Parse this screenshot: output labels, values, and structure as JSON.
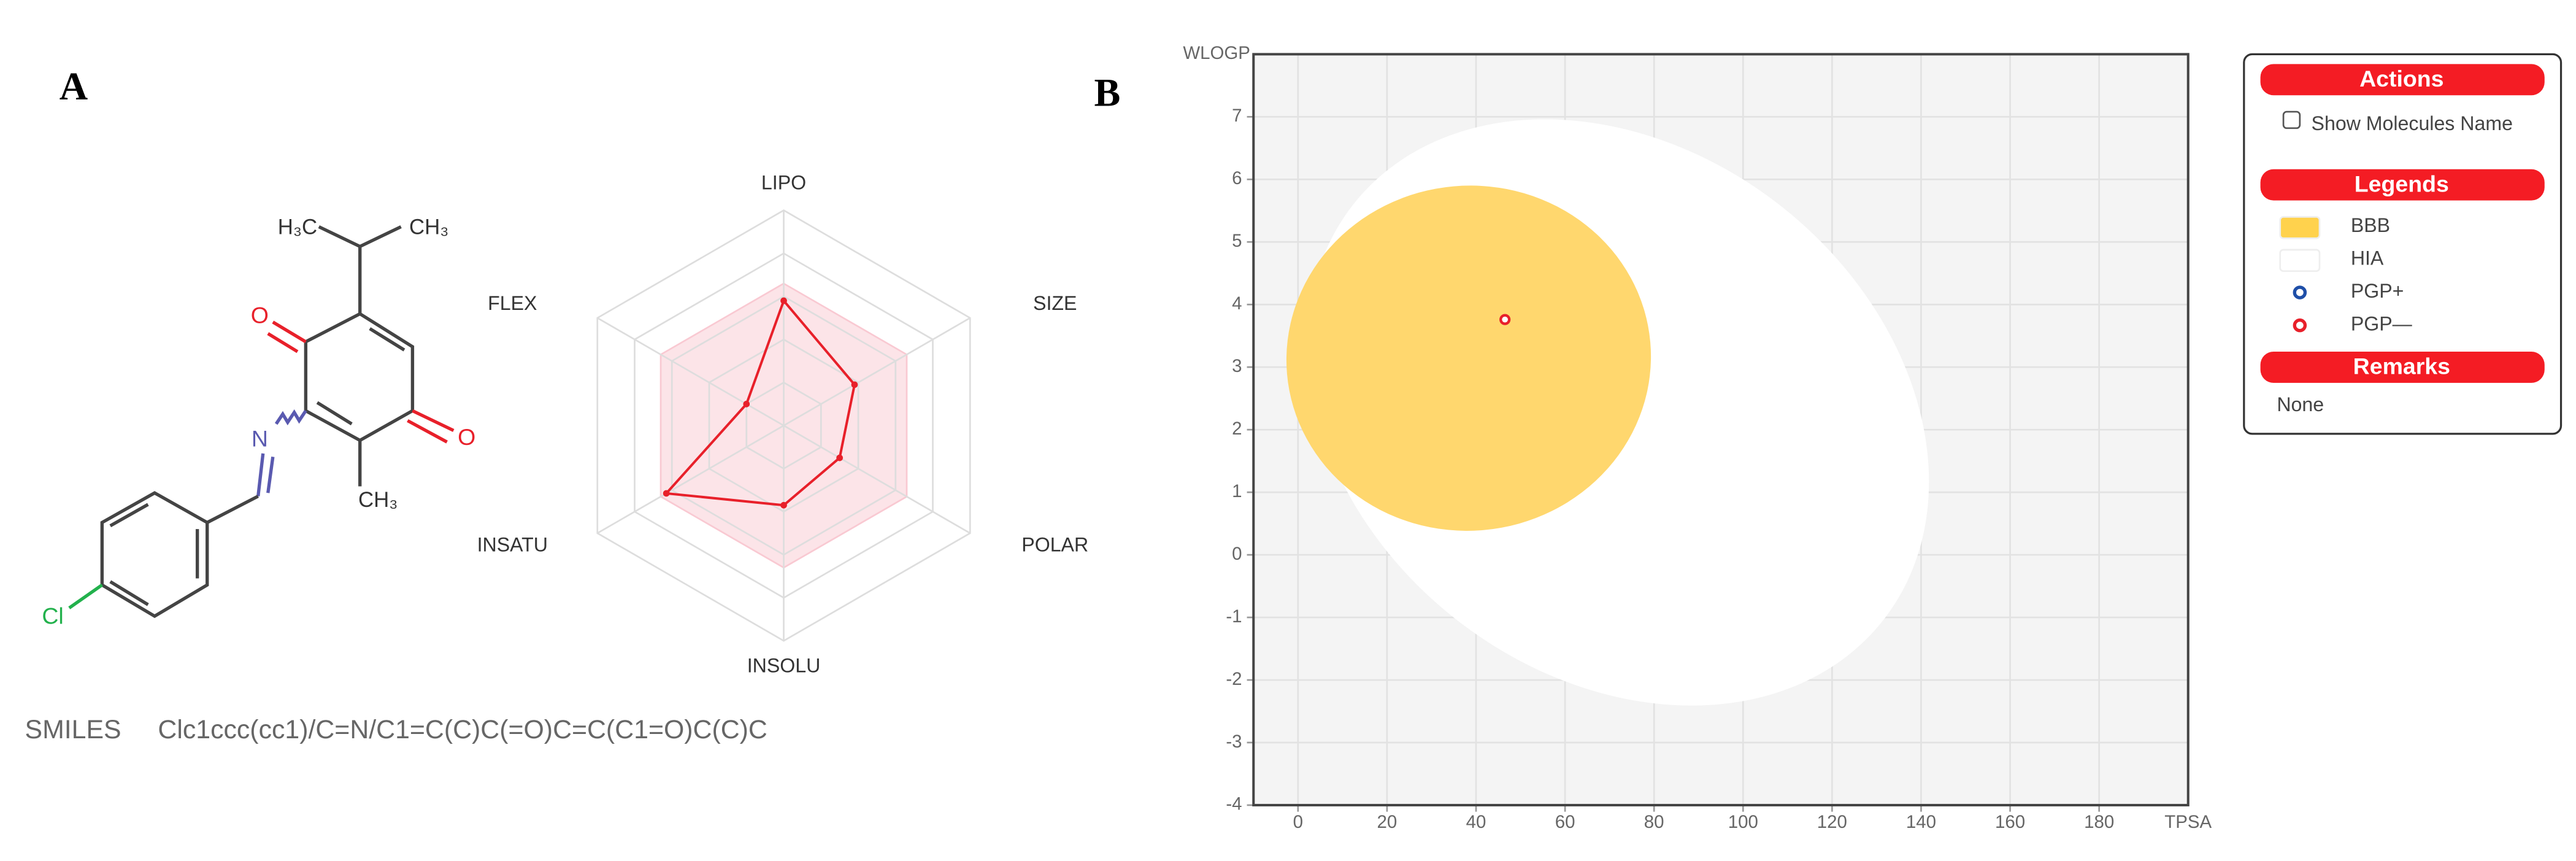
{
  "panel_a": {
    "label": "A",
    "atoms": [
      "H₃C",
      "CH₃",
      "O",
      "O",
      "N",
      "CH₃",
      "Cl"
    ],
    "smiles_label": "SMILES",
    "smiles": "Clc1ccc(cc1)/C=N/C1=C(C)C(=O)C=C(C1=O)C(C)C"
  },
  "chart_data": [
    {
      "type": "radar",
      "axes": [
        "LIPO",
        "SIZE",
        "POLAR",
        "INSOLU",
        "INSATU",
        "FLEX"
      ],
      "rlim": [
        0,
        1
      ],
      "rticks": [
        0.2,
        0.4,
        0.6,
        0.8,
        1
      ],
      "values": [
        0.58,
        0.38,
        0.3,
        0.37,
        0.63,
        0.2
      ],
      "color": "#e8202a",
      "optimal_values": [
        0.66,
        0.66,
        0.66,
        0.66,
        0.66,
        0.66
      ],
      "optimal_color": "#f9c9d2"
    },
    {
      "type": "scatter",
      "panel_label": "B",
      "xlabel": "TPSA",
      "ylabel": "WLOGP",
      "xlim": [
        -10,
        200
      ],
      "ylim": [
        -4,
        8
      ],
      "xticks": [
        0,
        20,
        40,
        60,
        80,
        100,
        120,
        140,
        160,
        180
      ],
      "yticks": [
        -4,
        -3,
        -2,
        -1,
        0,
        1,
        2,
        3,
        4,
        5,
        6,
        7
      ],
      "grid": true,
      "legend_items": [
        {
          "name": "BBB",
          "color": "#ffd24d"
        },
        {
          "name": "HIA",
          "color": "#ffffff"
        },
        {
          "name": "PGP+",
          "color": "#1f4fa8"
        }
      ],
      "series": [
        {
          "name": "PGP—",
          "color": "#e8202a",
          "x": [
            46.5
          ],
          "values": [
            3.76
          ]
        }
      ]
    }
  ],
  "sidebar": {
    "actions": "Actions",
    "checkbox": "Show Molecules Name",
    "legends": "Legends",
    "remarks": "Remarks",
    "remarks_text": "None"
  }
}
